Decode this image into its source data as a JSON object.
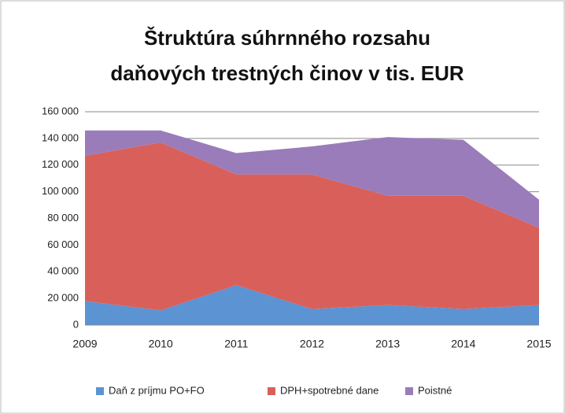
{
  "chart_data": {
    "type": "stacked_area",
    "title": [
      "Štruktúra súhrnného rozsahu",
      "daňových trestných činov v tis. EUR"
    ],
    "categories": [
      "2009",
      "2010",
      "2011",
      "2012",
      "2013",
      "2014",
      "2015"
    ],
    "series": [
      {
        "name": "Daň z príjmu PO+FO",
        "color": "#5b93d3",
        "values": [
          18000,
          11000,
          30000,
          12000,
          15000,
          12000,
          15000
        ]
      },
      {
        "name": "DPH+spotrebné dane",
        "color": "#d9605a",
        "values": [
          109000,
          126000,
          83000,
          101000,
          82000,
          85000,
          58000
        ]
      },
      {
        "name": "Poistné",
        "color": "#9a7cba",
        "values": [
          19000,
          9000,
          16000,
          21000,
          44000,
          42000,
          21000
        ]
      }
    ],
    "ylim": [
      0,
      160000
    ],
    "yticks": [
      0,
      {
        "value": 20000,
        "label": "20 000"
      },
      {
        "value": 40000,
        "label": "40 000"
      },
      {
        "value": 60000,
        "label": "60 000"
      },
      {
        "value": 80000,
        "label": "80 000"
      },
      {
        "value": 100000,
        "label": "100 000"
      },
      {
        "value": 120000,
        "label": "120 000"
      },
      {
        "value": 140000,
        "label": "140 000"
      },
      {
        "value": 160000,
        "label": "160 000"
      }
    ],
    "grid": true
  }
}
